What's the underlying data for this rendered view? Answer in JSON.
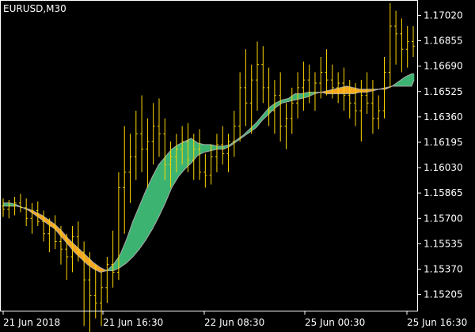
{
  "chart_data": {
    "type": "line",
    "title": "EURUSD,M30",
    "xlabel": "",
    "ylabel": "",
    "grid": false,
    "ylim": [
      1.151,
      1.1712
    ],
    "y_ticks": [
      "1.17020",
      "1.16855",
      "1.16690",
      "1.16525",
      "1.16360",
      "1.16195",
      "1.16030",
      "1.15865",
      "1.15700",
      "1.15535",
      "1.15370",
      "1.15205"
    ],
    "x_ticks": [
      "21 Jun 2018",
      "21 Jun 16:30",
      "22 Jun 08:30",
      "25 Jun 00:30",
      "25 Jun 16:30"
    ],
    "colors": {
      "background": "#000000",
      "frame": "#ffffff",
      "bars": "#ffd700",
      "cloud_bull": "#3cb371",
      "cloud_bear": "#f5a623",
      "line_bull": "#a9a9a9",
      "line_bear": "#a9a9a9"
    },
    "series": [
      {
        "values": [
          [
            1.1578,
            1.1583,
            1.1571,
            1.1576
          ],
          [
            1.1576,
            1.1582,
            1.157,
            1.1578
          ],
          [
            1.1578,
            1.1584,
            1.1572,
            1.158
          ],
          [
            1.158,
            1.1586,
            1.1574,
            1.1577
          ],
          [
            1.1577,
            1.1583,
            1.1565,
            1.157
          ],
          [
            1.157,
            1.158,
            1.156,
            1.1575
          ],
          [
            1.1575,
            1.1581,
            1.1565,
            1.1568
          ],
          [
            1.1568,
            1.1575,
            1.1555,
            1.156
          ],
          [
            1.156,
            1.157,
            1.1548,
            1.1565
          ],
          [
            1.1565,
            1.1572,
            1.155,
            1.1555
          ],
          [
            1.1555,
            1.1565,
            1.154,
            1.155
          ],
          [
            1.155,
            1.156,
            1.153,
            1.1545
          ],
          [
            1.1545,
            1.1565,
            1.1535,
            1.1558
          ],
          [
            1.1558,
            1.1568,
            1.1542,
            1.1548
          ],
          [
            1.1548,
            1.1555,
            1.15,
            1.153
          ],
          [
            1.153,
            1.1548,
            1.149,
            1.152
          ],
          [
            1.152,
            1.154,
            1.1505,
            1.1515
          ],
          [
            1.1515,
            1.1535,
            1.15,
            1.1525
          ],
          [
            1.1525,
            1.1545,
            1.1515,
            1.154
          ],
          [
            1.154,
            1.1562,
            1.1525,
            1.1535
          ],
          [
            1.1535,
            1.16,
            1.153,
            1.159
          ],
          [
            1.159,
            1.163,
            1.156,
            1.16
          ],
          [
            1.16,
            1.1625,
            1.158,
            1.161
          ],
          [
            1.161,
            1.164,
            1.1595,
            1.1625
          ],
          [
            1.1625,
            1.165,
            1.16,
            1.1615
          ],
          [
            1.1615,
            1.1635,
            1.159,
            1.162
          ],
          [
            1.162,
            1.1645,
            1.1605,
            1.163
          ],
          [
            1.163,
            1.1648,
            1.161,
            1.1625
          ],
          [
            1.1625,
            1.1635,
            1.1595,
            1.1605
          ],
          [
            1.1605,
            1.162,
            1.159,
            1.161
          ],
          [
            1.161,
            1.1625,
            1.16,
            1.1615
          ],
          [
            1.1615,
            1.163,
            1.1605,
            1.162
          ],
          [
            1.162,
            1.1632,
            1.16,
            1.1608
          ],
          [
            1.1608,
            1.1625,
            1.1595,
            1.1615
          ],
          [
            1.1615,
            1.1628,
            1.1595,
            1.16
          ],
          [
            1.16,
            1.1612,
            1.159,
            1.1598
          ],
          [
            1.1598,
            1.1618,
            1.1592,
            1.161
          ],
          [
            1.161,
            1.1625,
            1.16,
            1.1618
          ],
          [
            1.1618,
            1.163,
            1.1605,
            1.1612
          ],
          [
            1.1612,
            1.1625,
            1.16,
            1.162
          ],
          [
            1.162,
            1.164,
            1.161,
            1.163
          ],
          [
            1.163,
            1.1665,
            1.162,
            1.1655
          ],
          [
            1.1655,
            1.168,
            1.163,
            1.1645
          ],
          [
            1.1645,
            1.167,
            1.1625,
            1.166
          ],
          [
            1.166,
            1.1685,
            1.164,
            1.167
          ],
          [
            1.167,
            1.1682,
            1.1645,
            1.1655
          ],
          [
            1.1655,
            1.1668,
            1.163,
            1.164
          ],
          [
            1.164,
            1.166,
            1.1625,
            1.165
          ],
          [
            1.165,
            1.1665,
            1.162,
            1.163
          ],
          [
            1.163,
            1.1645,
            1.1615,
            1.1635
          ],
          [
            1.1635,
            1.1655,
            1.1625,
            1.1645
          ],
          [
            1.1645,
            1.1665,
            1.1635,
            1.1655
          ],
          [
            1.1655,
            1.1672,
            1.164,
            1.166
          ],
          [
            1.166,
            1.167,
            1.1645,
            1.1652
          ],
          [
            1.1652,
            1.1665,
            1.164,
            1.1658
          ],
          [
            1.1658,
            1.1675,
            1.1648,
            1.1665
          ],
          [
            1.1665,
            1.168,
            1.165,
            1.166
          ],
          [
            1.166,
            1.167,
            1.1648,
            1.1655
          ],
          [
            1.1655,
            1.1665,
            1.1645,
            1.1658
          ],
          [
            1.1658,
            1.1668,
            1.164,
            1.165
          ],
          [
            1.165,
            1.166,
            1.1635,
            1.1645
          ],
          [
            1.1645,
            1.1658,
            1.163,
            1.164
          ],
          [
            1.164,
            1.166,
            1.162,
            1.165
          ],
          [
            1.165,
            1.1665,
            1.1638,
            1.1645
          ],
          [
            1.1645,
            1.166,
            1.1625,
            1.1635
          ],
          [
            1.1635,
            1.165,
            1.1628,
            1.164
          ],
          [
            1.164,
            1.1675,
            1.1635,
            1.1665
          ],
          [
            1.1665,
            1.171,
            1.1655,
            1.1695
          ],
          [
            1.1695,
            1.1705,
            1.167,
            1.169
          ],
          [
            1.169,
            1.17,
            1.1665,
            1.168
          ],
          [
            1.168,
            1.1695,
            1.1668,
            1.1685
          ],
          [
            1.1685,
            1.1695,
            1.1675,
            1.1682
          ]
        ]
      }
    ],
    "cloud": {
      "fast": [
        1.158,
        1.158,
        1.1579,
        1.1577,
        1.1575,
        1.1572,
        1.1569,
        1.1566,
        1.1563,
        1.1558,
        1.1553,
        1.1548,
        1.1544,
        1.154,
        1.1537,
        1.1535,
        1.1536,
        1.154,
        1.1546,
        1.1556,
        1.1568,
        1.1578,
        1.1588,
        1.1597,
        1.1605,
        1.161,
        1.1615,
        1.1618,
        1.162,
        1.1622,
        1.1619,
        1.1618,
        1.1618,
        1.1617,
        1.1617,
        1.1618,
        1.1621,
        1.1624,
        1.1628,
        1.1632,
        1.1637,
        1.1642,
        1.1645,
        1.1647,
        1.1648,
        1.1651,
        1.1651,
        1.1652,
        1.1652,
        1.1652,
        1.1651,
        1.1651,
        1.1651,
        1.1651,
        1.1651,
        1.1652,
        1.1652,
        1.1653,
        1.1654,
        1.1654,
        1.1656,
        1.1659,
        1.1662,
        1.1664
      ],
      "slow": [
        1.1578,
        1.1578,
        1.1578,
        1.1577,
        1.1576,
        1.1574,
        1.1572,
        1.1569,
        1.1566,
        1.1562,
        1.1557,
        1.1553,
        1.1549,
        1.1545,
        1.1541,
        1.1538,
        1.1536,
        1.1536,
        1.1538,
        1.1541,
        1.1545,
        1.155,
        1.1556,
        1.1563,
        1.1571,
        1.158,
        1.159,
        1.1597,
        1.1602,
        1.1606,
        1.1611,
        1.1613,
        1.1614,
        1.1615,
        1.1615,
        1.1617,
        1.162,
        1.1623,
        1.1626,
        1.1629,
        1.1634,
        1.1638,
        1.1642,
        1.1645,
        1.1646,
        1.1647,
        1.1648,
        1.1649,
        1.1651,
        1.1652,
        1.1653,
        1.1654,
        1.1655,
        1.1656,
        1.1655,
        1.1654,
        1.1654,
        1.1654,
        1.1654,
        1.1655,
        1.1656,
        1.1656,
        1.1656,
        1.1656
      ],
      "end_values": [
        1.166,
        1.1664
      ]
    }
  }
}
